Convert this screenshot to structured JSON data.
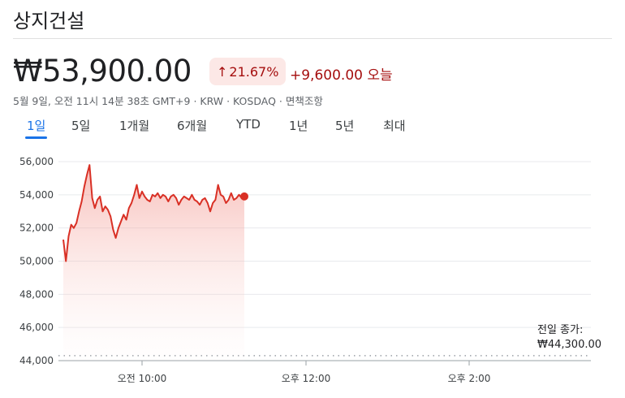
{
  "stock": {
    "name": "상지건설",
    "price": "₩53,900.00",
    "change_pct": "21.67%",
    "change_arrow": "↑",
    "change_abs": "+9,600.00 오늘",
    "meta": "5월 9일, 오전 11시 14분 38초 GMT+9 · KRW · KOSDAQ · 면책조항"
  },
  "tabs": [
    "1일",
    "5일",
    "1개월",
    "6개월",
    "YTD",
    "1년",
    "5년",
    "최대"
  ],
  "active_tab": "1일",
  "colors": {
    "accent": "#1a73e8",
    "down_red": "#d93025",
    "badge_bg": "#fce8e6"
  },
  "chart_data": {
    "type": "line",
    "y_ticks": [
      "56,000",
      "54,000",
      "52,000",
      "50,000",
      "48,000",
      "46,000",
      "44,000"
    ],
    "x_ticks": [
      "오전 10:00",
      "오후 12:00",
      "오후 2:00"
    ],
    "ylim": [
      44000,
      56000
    ],
    "previous_close_label": "전일 종가:",
    "previous_close_value": "₩44,300.00",
    "previous_close": 44300,
    "series": [
      {
        "values": [
          51300,
          50000,
          51500,
          52200,
          52000,
          52300,
          53000,
          53600,
          54500,
          55200,
          55800,
          53800,
          53200,
          53700,
          53900,
          53000,
          53300,
          53100,
          52700,
          51900,
          51400,
          52000,
          52400,
          52800,
          52500,
          53200,
          53500,
          54000,
          54600,
          53800,
          54200,
          53900,
          53700,
          53600,
          54000,
          53900,
          54100,
          53800,
          54000,
          53900,
          53600,
          53900,
          54000,
          53800,
          53400,
          53700,
          53900,
          53800,
          53700,
          54000,
          53700,
          53600,
          53400,
          53700,
          53800,
          53500,
          53000,
          53500,
          53700,
          54600,
          54000,
          53900,
          53500,
          53700,
          54100,
          53700,
          53800,
          54000,
          53800,
          53900
        ]
      }
    ]
  }
}
